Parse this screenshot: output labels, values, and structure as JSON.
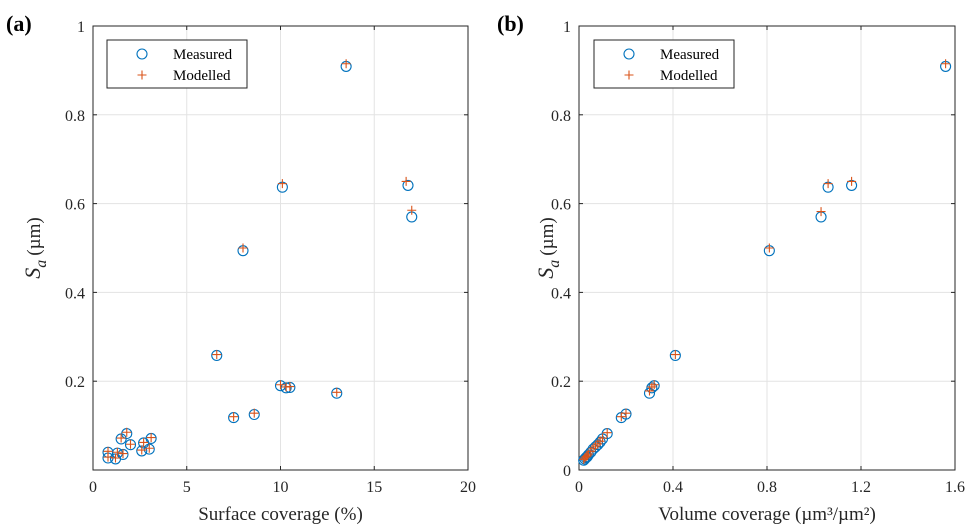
{
  "chart_data": [
    {
      "type": "scatter",
      "panel_label": "(a)",
      "xlabel": "Surface coverage (%)",
      "ylabel_symbol": "S",
      "ylabel_subscript": "a",
      "ylabel_unit": "(µm)",
      "xlim": [
        0,
        20
      ],
      "ylim": [
        0,
        1
      ],
      "xticks": [
        0,
        5,
        10,
        15,
        20
      ],
      "xtick_labels": [
        "0",
        "5",
        "10",
        "15",
        "20"
      ],
      "yticks": [
        0.2,
        0.4,
        0.6,
        0.8,
        1
      ],
      "ytick_labels": [
        "0.2",
        "0.4",
        "0.6",
        "0.8",
        "1"
      ],
      "grid": true,
      "legend_position": "top-left",
      "series": [
        {
          "name": "Measured",
          "marker": "circle",
          "color": "#0072BD",
          "points": [
            [
              0.8,
              0.027
            ],
            [
              0.8,
              0.04
            ],
            [
              1.2,
              0.025
            ],
            [
              1.3,
              0.038
            ],
            [
              1.5,
              0.07
            ],
            [
              1.6,
              0.035
            ],
            [
              1.8,
              0.082
            ],
            [
              2.0,
              0.057
            ],
            [
              2.6,
              0.043
            ],
            [
              2.7,
              0.061
            ],
            [
              3.0,
              0.047
            ],
            [
              3.1,
              0.071
            ],
            [
              6.6,
              0.258
            ],
            [
              7.5,
              0.118
            ],
            [
              8.0,
              0.494
            ],
            [
              8.6,
              0.125
            ],
            [
              10.0,
              0.19
            ],
            [
              10.1,
              0.637
            ],
            [
              10.3,
              0.185
            ],
            [
              10.5,
              0.186
            ],
            [
              13.0,
              0.173
            ],
            [
              13.5,
              0.909
            ],
            [
              16.8,
              0.641
            ],
            [
              17.0,
              0.57
            ]
          ]
        },
        {
          "name": "Modelled",
          "marker": "plus",
          "color": "#D95319",
          "points": [
            [
              0.8,
              0.029
            ],
            [
              0.8,
              0.042
            ],
            [
              1.2,
              0.027
            ],
            [
              1.3,
              0.04
            ],
            [
              1.5,
              0.072
            ],
            [
              1.6,
              0.037
            ],
            [
              1.8,
              0.085
            ],
            [
              2.0,
              0.058
            ],
            [
              2.6,
              0.045
            ],
            [
              2.7,
              0.062
            ],
            [
              3.0,
              0.049
            ],
            [
              3.1,
              0.073
            ],
            [
              6.6,
              0.26
            ],
            [
              7.5,
              0.12
            ],
            [
              8.0,
              0.5
            ],
            [
              8.6,
              0.128
            ],
            [
              10.0,
              0.192
            ],
            [
              10.1,
              0.645
            ],
            [
              10.3,
              0.187
            ],
            [
              10.5,
              0.188
            ],
            [
              13.0,
              0.175
            ],
            [
              13.5,
              0.915
            ],
            [
              16.7,
              0.65
            ],
            [
              17.0,
              0.585
            ]
          ]
        }
      ]
    },
    {
      "type": "scatter",
      "panel_label": "(b)",
      "xlabel": "Volume coverage (µm³/µm²)",
      "ylabel_symbol": "S",
      "ylabel_subscript": "a",
      "ylabel_unit": "(µm)",
      "xlim": [
        0,
        1.6
      ],
      "ylim": [
        0,
        1
      ],
      "xticks": [
        0,
        0.4,
        0.8,
        1.2,
        1.6
      ],
      "xtick_labels": [
        "0",
        "0.4",
        "0.8",
        "1.2",
        "1.6"
      ],
      "yticks": [
        0,
        0.2,
        0.4,
        0.6,
        0.8,
        1
      ],
      "ytick_labels": [
        "0",
        "0.2",
        "0.4",
        "0.6",
        "0.8",
        "1"
      ],
      "grid": true,
      "legend_position": "top-left",
      "series": [
        {
          "name": "Measured",
          "marker": "circle",
          "color": "#0072BD",
          "points": [
            [
              0.02,
              0.022
            ],
            [
              0.025,
              0.025
            ],
            [
              0.03,
              0.028
            ],
            [
              0.035,
              0.03
            ],
            [
              0.04,
              0.034
            ],
            [
              0.05,
              0.04
            ],
            [
              0.06,
              0.047
            ],
            [
              0.07,
              0.052
            ],
            [
              0.08,
              0.057
            ],
            [
              0.09,
              0.063
            ],
            [
              0.1,
              0.07
            ],
            [
              0.12,
              0.082
            ],
            [
              0.18,
              0.118
            ],
            [
              0.2,
              0.126
            ],
            [
              0.3,
              0.173
            ],
            [
              0.31,
              0.185
            ],
            [
              0.32,
              0.19
            ],
            [
              0.41,
              0.258
            ],
            [
              0.81,
              0.494
            ],
            [
              1.03,
              0.57
            ],
            [
              1.06,
              0.637
            ],
            [
              1.16,
              0.641
            ],
            [
              1.56,
              0.909
            ]
          ]
        },
        {
          "name": "Modelled",
          "marker": "plus",
          "color": "#D95319",
          "points": [
            [
              0.02,
              0.024
            ],
            [
              0.025,
              0.027
            ],
            [
              0.03,
              0.03
            ],
            [
              0.035,
              0.032
            ],
            [
              0.04,
              0.036
            ],
            [
              0.05,
              0.042
            ],
            [
              0.06,
              0.049
            ],
            [
              0.07,
              0.054
            ],
            [
              0.08,
              0.059
            ],
            [
              0.09,
              0.065
            ],
            [
              0.1,
              0.072
            ],
            [
              0.12,
              0.084
            ],
            [
              0.18,
              0.12
            ],
            [
              0.2,
              0.128
            ],
            [
              0.3,
              0.178
            ],
            [
              0.31,
              0.187
            ],
            [
              0.32,
              0.192
            ],
            [
              0.41,
              0.26
            ],
            [
              0.81,
              0.5
            ],
            [
              1.03,
              0.582
            ],
            [
              1.06,
              0.645
            ],
            [
              1.16,
              0.65
            ],
            [
              1.56,
              0.915
            ]
          ]
        }
      ]
    }
  ]
}
